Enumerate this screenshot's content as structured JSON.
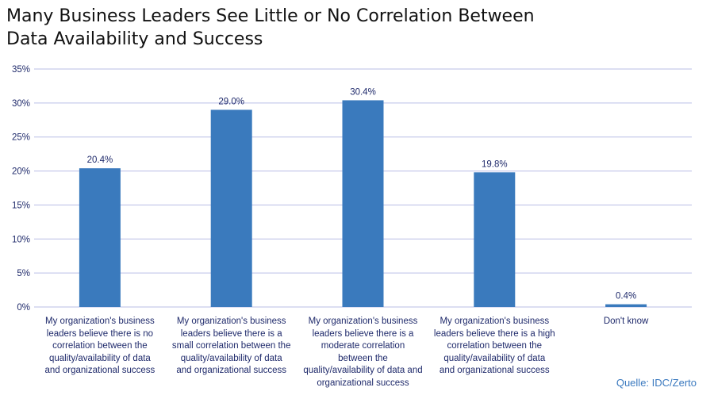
{
  "chart_data": {
    "type": "bar",
    "title": "Many Business Leaders See Little or No Correlation Between Data Availability and Success",
    "title_lines": [
      "Many Business Leaders See Little or No Correlation Between",
      "Data Availability and Success"
    ],
    "categories": [
      "My organization's business leaders believe there is no correlation between the quality/availability of data and organizational success",
      "My organization's business leaders believe there is a small correlation between the quality/availability of data and organizational success",
      "My organization's business leaders believe there is a moderate correlation between the quality/availability of data and organizational success",
      "My organization's business leaders believe there is a high correlation between the quality/availability of data and organizational success",
      "Don't know"
    ],
    "category_lines": [
      [
        "My organization's business",
        "leaders believe there is no",
        "correlation between the",
        "quality/availability of data",
        "and organizational success"
      ],
      [
        "My organization's business",
        "leaders believe there is a",
        "small correlation between the",
        "quality/availability of data",
        "and organizational success"
      ],
      [
        "My organization's business",
        "leaders believe there is a",
        "moderate correlation",
        "between the",
        "quality/availability of data and",
        "organizational success"
      ],
      [
        "My organization's business",
        "leaders believe there is a high",
        "correlation between the",
        "quality/availability of data",
        "and organizational success"
      ],
      [
        "Don't know"
      ]
    ],
    "values": [
      20.4,
      29.0,
      30.4,
      19.8,
      0.4
    ],
    "data_labels": [
      "20.4%",
      "29.0%",
      "30.4%",
      "19.8%",
      "0.4%"
    ],
    "y_ticks": [
      "0%",
      "5%",
      "10%",
      "15%",
      "20%",
      "25%",
      "30%",
      "35%"
    ],
    "ylim": [
      0,
      35
    ],
    "grid": true,
    "legend": "none",
    "bar_color": "#3a7abd",
    "grid_color": "#b9bde6",
    "label_color": "#1f2a6b"
  },
  "source": "Quelle: IDC/Zerto"
}
